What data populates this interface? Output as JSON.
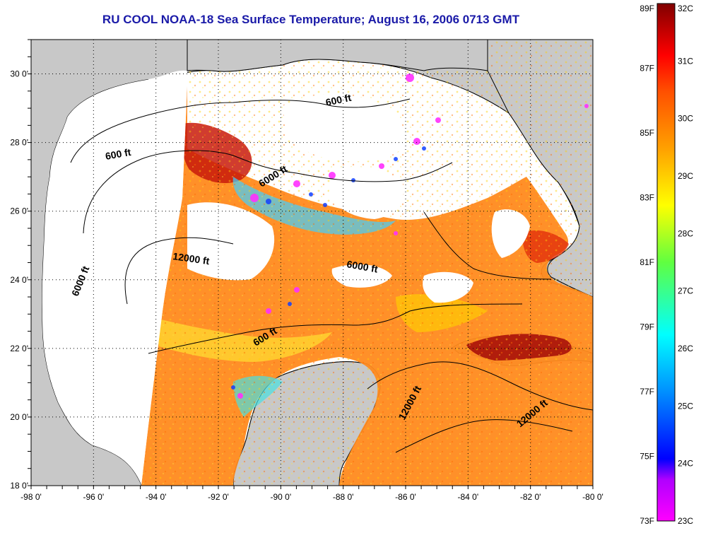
{
  "title": "RU COOL  NOAA-18  Sea Surface Temperature;  August 16, 2006 0713 GMT",
  "map": {
    "lon_range": [
      -98,
      -80
    ],
    "lat_range": [
      18,
      31
    ],
    "lon_ticks": [
      "-98 0'",
      "-96 0'",
      "-94 0'",
      "-92 0'",
      "-90 0'",
      "-88 0'",
      "-86 0'",
      "-84 0'",
      "-82 0'",
      "-80 0'"
    ],
    "lat_ticks": [
      "18 0'",
      "20 0'",
      "22 0'",
      "24 0'",
      "26 0'",
      "28 0'",
      "30 0'"
    ],
    "grid": "dotted",
    "contour_labels": [
      "600 ft",
      "600 ft",
      "600 ft",
      "6000 ft",
      "6000 ft",
      "6000 ft",
      "12000 ft",
      "12000 ft",
      "12000 ft"
    ],
    "colors": {
      "land": "#c8c8c8",
      "cloud_or_missing": "#ffffff"
    }
  },
  "colorbar": {
    "fahrenheit_labels": [
      "89F",
      "87F",
      "85F",
      "83F",
      "81F",
      "79F",
      "77F",
      "75F",
      "73F"
    ],
    "celsius_labels": [
      "32C",
      "31C",
      "30C",
      "29C",
      "28C",
      "27C",
      "26C",
      "25C",
      "24C",
      "23C"
    ],
    "range_c": [
      23,
      32
    ],
    "stops": [
      "#ff00ff",
      "#0000ff",
      "#00c0ff",
      "#00ffd0",
      "#80ff00",
      "#ffff00",
      "#ffa000",
      "#ff5000",
      "#ff0000",
      "#800000"
    ]
  }
}
